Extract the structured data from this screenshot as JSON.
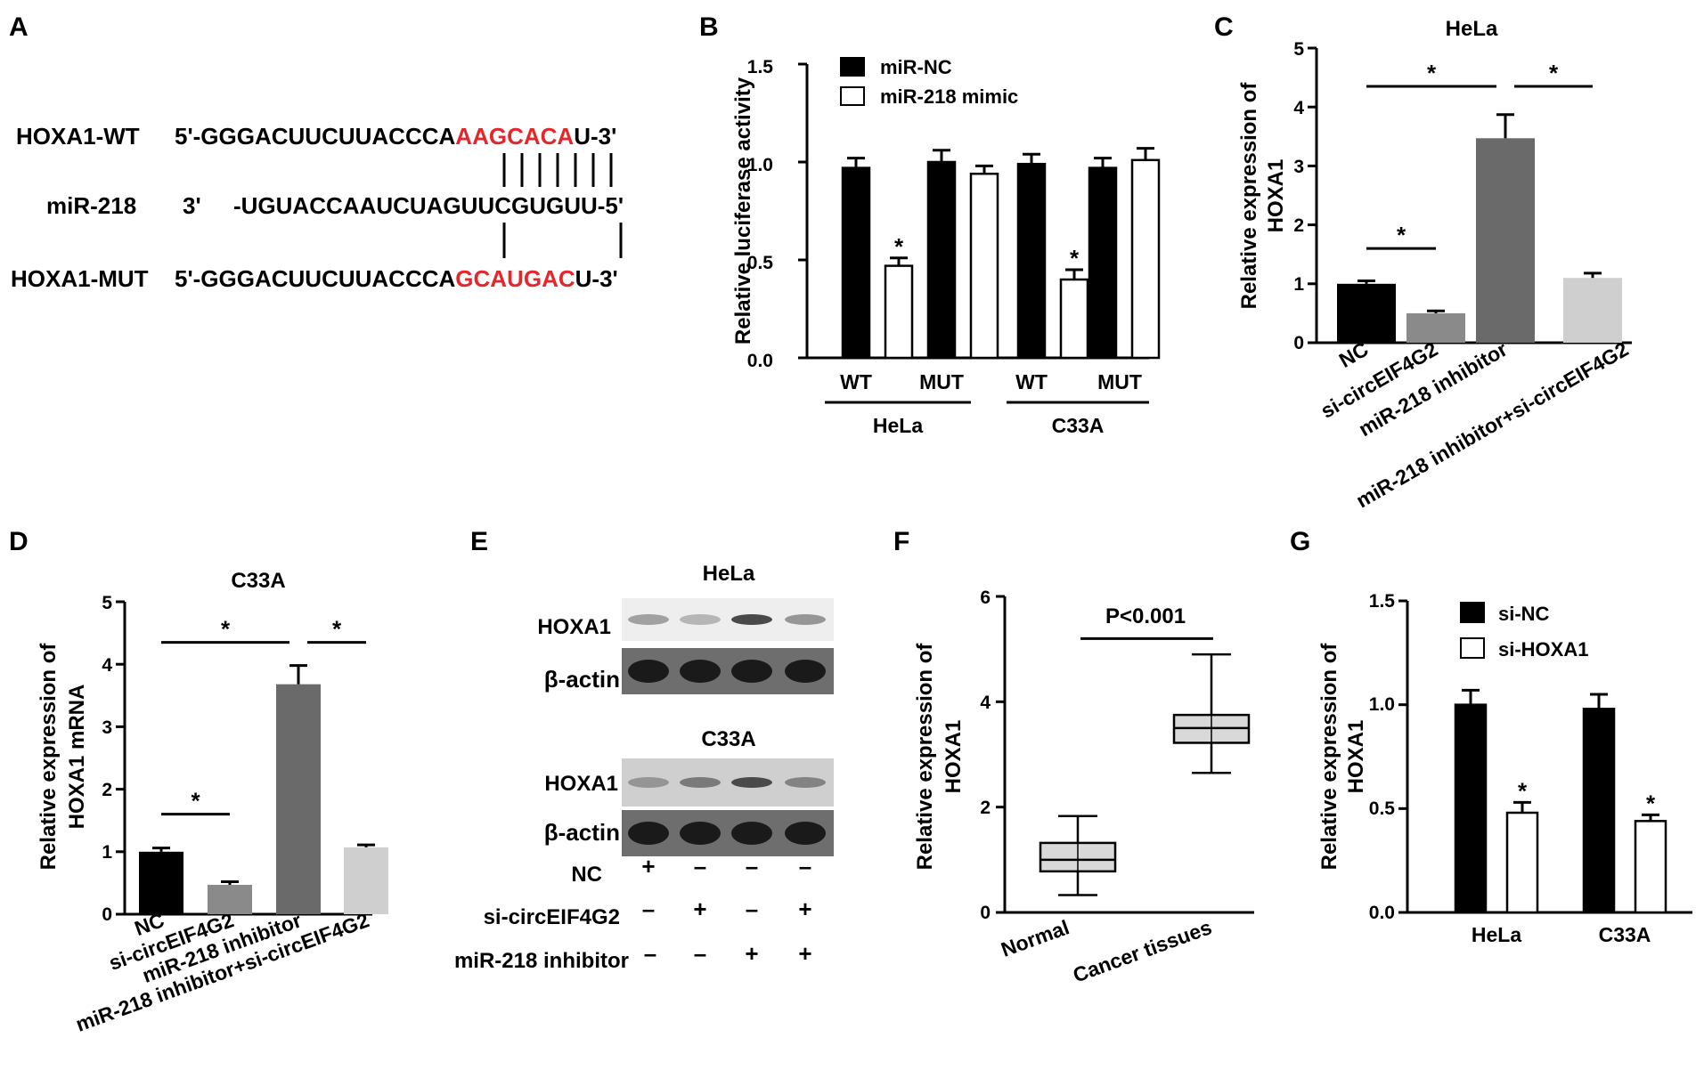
{
  "panels": {
    "A": {
      "label": "A",
      "rows": [
        {
          "name": "HOXA1-WT",
          "prefix": "5'-GGGACUUCUUACCCA",
          "highlight": "AAGCACA",
          "suffix": "U-3'"
        },
        {
          "name": "miR-218",
          "prefix": "3'",
          "seq": "-UGUACCAAUCUAGUUCGUGUU-5'"
        },
        {
          "name": "HOXA1-MUT",
          "prefix": "5'-GGGACUUCUUACCCA",
          "highlight": "GCAUGAC",
          "suffix": "U-3'"
        }
      ]
    },
    "B": {
      "label": "B"
    },
    "C": {
      "label": "C"
    },
    "D": {
      "label": "D"
    },
    "E": {
      "label": "E",
      "blots": [
        {
          "cell": "HeLa",
          "rows": [
            "HOXA1",
            "β-actin"
          ],
          "intensity": [
            [
              0.35,
              0.25,
              0.75,
              0.4
            ],
            [
              0.9,
              0.9,
              0.9,
              0.9
            ]
          ]
        },
        {
          "cell": "C33A",
          "rows": [
            "HOXA1",
            "β-actin"
          ],
          "intensity": [
            [
              0.3,
              0.45,
              0.7,
              0.4
            ],
            [
              0.9,
              0.9,
              0.9,
              0.9
            ]
          ]
        }
      ],
      "conditions": [
        {
          "name": "NC",
          "marks": [
            "+",
            "–",
            "–",
            "–"
          ]
        },
        {
          "name": "si-circEIF4G2",
          "marks": [
            "–",
            "+",
            "–",
            "+"
          ]
        },
        {
          "name": "miR-218 inhibitor",
          "marks": [
            "–",
            "–",
            "+",
            "+"
          ]
        }
      ]
    },
    "F": {
      "label": "F"
    },
    "G": {
      "label": "G"
    }
  },
  "chart_data": [
    {
      "panel": "B",
      "type": "bar",
      "title": "",
      "ylabel": "Relative luciferase activity",
      "ylim": [
        0,
        1.5
      ],
      "yticks": [
        "0.0",
        "0.5",
        "1.0",
        "1.5"
      ],
      "categories": [
        "WT",
        "MUT",
        "WT",
        "MUT"
      ],
      "groups": [
        {
          "name": "HeLa",
          "span": [
            0,
            1
          ]
        },
        {
          "name": "C33A",
          "span": [
            2,
            3
          ]
        }
      ],
      "series": [
        {
          "name": "miR-NC",
          "color": "#000000",
          "values": [
            0.97,
            1.0,
            0.99,
            0.97
          ],
          "errors": [
            0.05,
            0.06,
            0.05,
            0.05
          ],
          "stars": [
            false,
            false,
            false,
            false
          ]
        },
        {
          "name": "miR-218 mimic",
          "color": "#ffffff",
          "values": [
            0.47,
            0.94,
            0.4,
            1.01
          ],
          "errors": [
            0.04,
            0.04,
            0.05,
            0.06
          ],
          "stars": [
            true,
            false,
            true,
            false
          ]
        }
      ],
      "legend": "top-left"
    },
    {
      "panel": "C",
      "type": "bar",
      "title": "HeLa",
      "ylabel": "Relative expression of HOXA1",
      "ylim": [
        0,
        5
      ],
      "yticks": [
        "0",
        "1",
        "2",
        "3",
        "4",
        "5"
      ],
      "categories": [
        "NC",
        "si-circEIF4G2",
        "miR-218 inhibitor",
        "miR-218 inhibitor+si-circEIF4G2"
      ],
      "values": [
        1.0,
        0.5,
        3.47,
        1.1
      ],
      "errors": [
        0.05,
        0.04,
        0.4,
        0.08
      ],
      "colors": [
        "#000000",
        "#8a8a8a",
        "#6a6a6a",
        "#cfcfcf"
      ],
      "significance": [
        {
          "from": 0,
          "to": 1,
          "y": 1.6,
          "label": "*"
        },
        {
          "from": 0,
          "to": 2,
          "y": 4.35,
          "label": "*"
        },
        {
          "from": 2,
          "to": 3,
          "y": 4.35,
          "label": "*"
        }
      ]
    },
    {
      "panel": "D",
      "type": "bar",
      "title": "C33A",
      "ylabel": "Relative expression of HOXA1 mRNA",
      "ylim": [
        0,
        5
      ],
      "yticks": [
        "0",
        "1",
        "2",
        "3",
        "4",
        "5"
      ],
      "categories": [
        "NC",
        "si-circEIF4G2",
        "miR-218 inhibitor",
        "miR-218 inhibitor+si-circEIF4G2"
      ],
      "values": [
        1.0,
        0.47,
        3.68,
        1.07
      ],
      "errors": [
        0.06,
        0.05,
        0.3,
        0.04
      ],
      "colors": [
        "#000000",
        "#8a8a8a",
        "#6a6a6a",
        "#cfcfcf"
      ],
      "significance": [
        {
          "from": 0,
          "to": 1,
          "y": 1.6,
          "label": "*"
        },
        {
          "from": 0,
          "to": 2,
          "y": 4.35,
          "label": "*"
        },
        {
          "from": 2,
          "to": 3,
          "y": 4.35,
          "label": "*"
        }
      ]
    },
    {
      "panel": "F",
      "type": "box",
      "title": "",
      "ylabel": "Relative expression of HOXA1",
      "ylim": [
        0,
        6
      ],
      "yticks": [
        "0",
        "2",
        "4",
        "6"
      ],
      "categories": [
        "Normal",
        "Cancer tissues"
      ],
      "boxes": [
        {
          "min": 0.33,
          "q1": 0.78,
          "median": 1.0,
          "q3": 1.32,
          "max": 1.83
        },
        {
          "min": 2.65,
          "q1": 3.22,
          "median": 3.5,
          "q3": 3.75,
          "max": 4.9
        }
      ],
      "annotation": "P<0.001",
      "annotation_y": 5.2
    },
    {
      "panel": "G",
      "type": "bar",
      "title": "",
      "ylabel": "Relative expression of HOXA1",
      "ylim": [
        0,
        1.5
      ],
      "yticks": [
        "0.0",
        "0.5",
        "1.0",
        "1.5"
      ],
      "categories": [
        "HeLa",
        "C33A"
      ],
      "series": [
        {
          "name": "si-NC",
          "color": "#000000",
          "values": [
            1.0,
            0.98
          ],
          "errors": [
            0.07,
            0.07
          ],
          "stars": [
            false,
            false
          ]
        },
        {
          "name": "si-HOXA1",
          "color": "#ffffff",
          "values": [
            0.48,
            0.44
          ],
          "errors": [
            0.05,
            0.03
          ],
          "stars": [
            true,
            true
          ]
        }
      ],
      "legend": "top-left"
    }
  ]
}
